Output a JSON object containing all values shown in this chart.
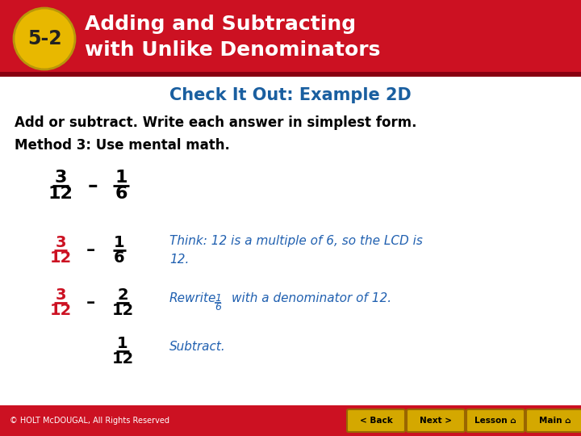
{
  "header_color": "#cc1122",
  "header_dark": "#880011",
  "badge_color": "#e8b800",
  "badge_text": "5-2",
  "header_title_line1": "Adding and Subtracting",
  "header_title_line2": "with Unlike Denominators",
  "check_title": "Check It Out: Example 2D",
  "line1": "Add or subtract. Write each answer in simplest form.",
  "line2": "Method 3: Use mental math.",
  "footer_color": "#cc1122",
  "footer_text": "© HOLT McDOUGAL, All Rights Reserved",
  "bg_color": "#ffffff",
  "header_text_color": "#ffffff",
  "check_title_color": "#1a5fa0",
  "body_text_color": "#000000",
  "red_color": "#cc1122",
  "blue_color": "#2060b0",
  "nav_button_color": "#d4a800",
  "nav_button_edge": "#996600",
  "nav_buttons": [
    "< Back",
    "Next >",
    "Lesson n",
    "Main n"
  ]
}
